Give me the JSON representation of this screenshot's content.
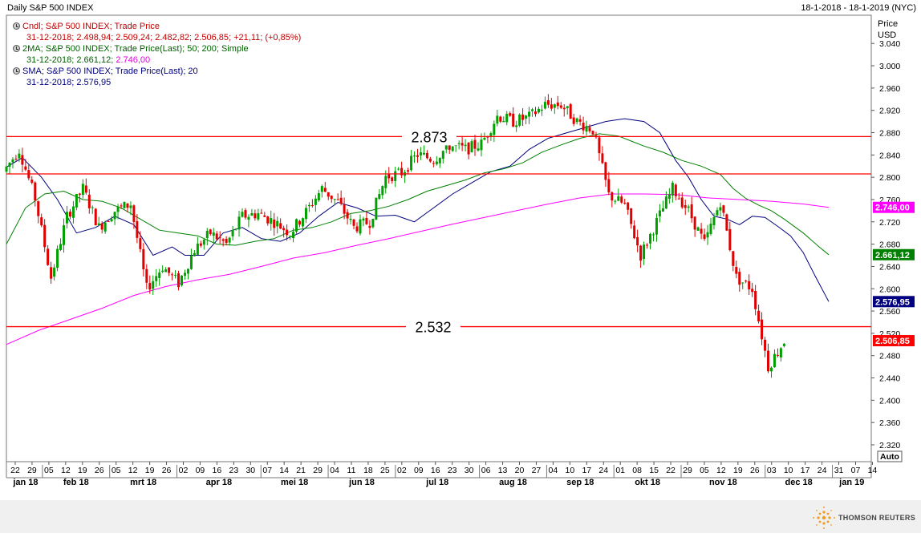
{
  "header": {
    "title": "Daily S&P 500 INDEX",
    "date_range": "18-1-2018 - 18-1-2019 (NYC)"
  },
  "legend": {
    "candle_label": "Cndl; S&P 500 INDEX; Trade Price",
    "candle_values": "31-12-2018; 2.498,94; 2.509,24; 2.482,82; 2.506,85; +21,11; (+0,85%)",
    "ma_label": "2MA; S&P 500 INDEX; Trade Price(Last);  50; 200; Simple",
    "ma_values_prefix": "31-12-2018; 2.661,12;",
    "ma_values_200": "2.746,00",
    "sma_label": "SMA; S&P 500 INDEX; Trade Price(Last);  20",
    "sma_values": "31-12-2018; 2.576,95"
  },
  "brand": {
    "name": "THOMSON REUTERS"
  },
  "chart_data": {
    "type": "candlestick",
    "title": "Daily S&P 500 INDEX",
    "ylabel": "Price\nUSD",
    "ylim": [
      2300,
      3075
    ],
    "y_ticks": [
      2320,
      2360,
      2400,
      2440,
      2480,
      2520,
      2560,
      2600,
      2640,
      2680,
      2720,
      2760,
      2800,
      2840,
      2880,
      2920,
      2960,
      3000,
      3040
    ],
    "y_tick_labels": [
      "2.320",
      "2.360",
      "2.400",
      "2.440",
      "2.480",
      "2.520",
      "2.560",
      "2.600",
      "2.640",
      "2.680",
      "2.720",
      "2.760",
      "2.800",
      "2.840",
      "2.880",
      "2.920",
      "2.960",
      "3.000",
      "3.040"
    ],
    "y_scale_mode": "Auto",
    "x_day_labels": [
      "22",
      "29",
      "05",
      "12",
      "19",
      "26",
      "05",
      "12",
      "19",
      "26",
      "02",
      "09",
      "16",
      "23",
      "30",
      "07",
      "14",
      "21",
      "29",
      "04",
      "11",
      "18",
      "25",
      "02",
      "09",
      "16",
      "23",
      "30",
      "06",
      "13",
      "20",
      "27",
      "04",
      "10",
      "17",
      "24",
      "01",
      "08",
      "15",
      "22",
      "29",
      "05",
      "12",
      "19",
      "26",
      "03",
      "10",
      "17",
      "24",
      "31",
      "07",
      "14"
    ],
    "x_month_labels": [
      {
        "label": "jan 18",
        "day_index": 0
      },
      {
        "label": "feb 18",
        "day_index": 2
      },
      {
        "label": "mrt 18",
        "day_index": 6
      },
      {
        "label": "apr 18",
        "day_index": 10
      },
      {
        "label": "mei 18",
        "day_index": 15
      },
      {
        "label": "jun 18",
        "day_index": 19
      },
      {
        "label": "jul 18",
        "day_index": 23
      },
      {
        "label": "aug 18",
        "day_index": 28
      },
      {
        "label": "sep 18",
        "day_index": 32
      },
      {
        "label": "okt 18",
        "day_index": 36
      },
      {
        "label": "nov 18",
        "day_index": 40
      },
      {
        "label": "dec 18",
        "day_index": 45
      },
      {
        "label": "jan 19",
        "day_index": 49
      }
    ],
    "horizontal_lines": [
      {
        "value": 2873,
        "label": "2.873",
        "color": "#ff0000"
      },
      {
        "value": 2532,
        "label": "2.532",
        "color": "#ff0000"
      },
      {
        "value": 2806,
        "label": "",
        "color": "#ff0000"
      }
    ],
    "last_value_tags": [
      {
        "value": 2746.0,
        "label": "2.746,00",
        "color": "#ff00ff"
      },
      {
        "value": 2661.12,
        "label": "2.661,12",
        "color": "#008000"
      },
      {
        "value": 2576.95,
        "label": "2.576,95",
        "color": "#000080"
      },
      {
        "value": 2506.85,
        "label": "2.506,85",
        "color": "#ff0000"
      }
    ],
    "weekly_closes": [
      2810,
      2850,
      2762,
      2620,
      2730,
      2780,
      2710,
      2740,
      2752,
      2600,
      2640,
      2610,
      2670,
      2700,
      2680,
      2730,
      2735,
      2720,
      2700,
      2738,
      2780,
      2755,
      2710,
      2720,
      2801,
      2808,
      2841,
      2832,
      2857,
      2850,
      2860,
      2910,
      2900,
      2908,
      2930,
      2930,
      2900,
      2885,
      2768,
      2750,
      2660,
      2720,
      2780,
      2740,
      2681,
      2757,
      2620,
      2600,
      2460,
      2506
    ],
    "series": [
      {
        "name": "SMA 20",
        "color": "#000080",
        "points": [
          [
            0,
            2818
          ],
          [
            5,
            2835
          ],
          [
            11,
            2800
          ],
          [
            16,
            2760
          ],
          [
            22,
            2700
          ],
          [
            28,
            2710
          ],
          [
            34,
            2730
          ],
          [
            40,
            2715
          ],
          [
            46,
            2660
          ],
          [
            52,
            2675
          ],
          [
            56,
            2660
          ],
          [
            62,
            2660
          ],
          [
            68,
            2700
          ],
          [
            74,
            2710
          ],
          [
            80,
            2690
          ],
          [
            86,
            2685
          ],
          [
            92,
            2700
          ],
          [
            98,
            2730
          ],
          [
            104,
            2755
          ],
          [
            110,
            2745
          ],
          [
            116,
            2730
          ],
          [
            122,
            2732
          ],
          [
            128,
            2720
          ],
          [
            134,
            2745
          ],
          [
            140,
            2770
          ],
          [
            146,
            2790
          ],
          [
            152,
            2810
          ],
          [
            158,
            2820
          ],
          [
            164,
            2850
          ],
          [
            170,
            2870
          ],
          [
            176,
            2880
          ],
          [
            182,
            2890
          ],
          [
            188,
            2900
          ],
          [
            194,
            2905
          ],
          [
            200,
            2900
          ],
          [
            205,
            2880
          ],
          [
            210,
            2830
          ],
          [
            214,
            2800
          ],
          [
            218,
            2760
          ],
          [
            222,
            2730
          ],
          [
            226,
            2725
          ],
          [
            230,
            2715
          ],
          [
            234,
            2730
          ],
          [
            238,
            2728
          ],
          [
            242,
            2712
          ],
          [
            246,
            2695
          ],
          [
            250,
            2665
          ],
          [
            254,
            2620
          ],
          [
            258,
            2577
          ]
        ]
      },
      {
        "name": "MA 50",
        "color": "#008000",
        "points": [
          [
            0,
            2680
          ],
          [
            6,
            2745
          ],
          [
            12,
            2770
          ],
          [
            18,
            2775
          ],
          [
            24,
            2760
          ],
          [
            30,
            2757
          ],
          [
            36,
            2745
          ],
          [
            42,
            2725
          ],
          [
            48,
            2705
          ],
          [
            54,
            2700
          ],
          [
            60,
            2695
          ],
          [
            66,
            2680
          ],
          [
            72,
            2678
          ],
          [
            78,
            2685
          ],
          [
            84,
            2690
          ],
          [
            90,
            2705
          ],
          [
            96,
            2710
          ],
          [
            102,
            2720
          ],
          [
            108,
            2735
          ],
          [
            114,
            2740
          ],
          [
            120,
            2748
          ],
          [
            126,
            2760
          ],
          [
            132,
            2775
          ],
          [
            138,
            2785
          ],
          [
            144,
            2795
          ],
          [
            150,
            2808
          ],
          [
            156,
            2815
          ],
          [
            162,
            2826
          ],
          [
            168,
            2845
          ],
          [
            174,
            2858
          ],
          [
            180,
            2870
          ],
          [
            186,
            2878
          ],
          [
            192,
            2874
          ],
          [
            196,
            2865
          ],
          [
            200,
            2856
          ],
          [
            206,
            2845
          ],
          [
            212,
            2830
          ],
          [
            218,
            2820
          ],
          [
            224,
            2805
          ],
          [
            228,
            2780
          ],
          [
            232,
            2762
          ],
          [
            236,
            2750
          ],
          [
            240,
            2740
          ],
          [
            244,
            2725
          ],
          [
            250,
            2700
          ],
          [
            255,
            2675
          ],
          [
            258,
            2661
          ]
        ]
      },
      {
        "name": "MA 200",
        "color": "#ff00ff",
        "points": [
          [
            0,
            2500
          ],
          [
            10,
            2525
          ],
          [
            20,
            2545
          ],
          [
            30,
            2565
          ],
          [
            40,
            2588
          ],
          [
            50,
            2604
          ],
          [
            60,
            2616
          ],
          [
            70,
            2626
          ],
          [
            80,
            2640
          ],
          [
            90,
            2655
          ],
          [
            100,
            2665
          ],
          [
            110,
            2678
          ],
          [
            120,
            2690
          ],
          [
            130,
            2703
          ],
          [
            140,
            2716
          ],
          [
            150,
            2728
          ],
          [
            160,
            2740
          ],
          [
            170,
            2752
          ],
          [
            180,
            2763
          ],
          [
            190,
            2770
          ],
          [
            200,
            2770
          ],
          [
            210,
            2769
          ],
          [
            220,
            2763
          ],
          [
            230,
            2760
          ],
          [
            240,
            2757
          ],
          [
            250,
            2752
          ],
          [
            258,
            2746
          ]
        ]
      }
    ]
  }
}
